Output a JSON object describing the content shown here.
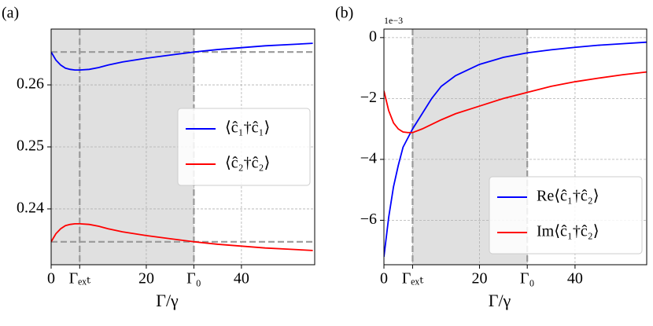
{
  "chart_data": [
    {
      "type": "line",
      "panel_label": "(a)",
      "xlabel": "Γ/γ",
      "x": [
        0,
        1,
        2,
        3,
        4,
        5,
        6,
        8,
        10,
        12,
        15,
        20,
        25,
        30,
        35,
        40,
        45,
        50,
        55
      ],
      "series": [
        {
          "name": "⟨ĉ₁†ĉ₁⟩",
          "color": "#0000ff",
          "values": [
            0.2653,
            0.264,
            0.2632,
            0.2627,
            0.2625,
            0.2624,
            0.2624,
            0.2625,
            0.2628,
            0.2632,
            0.2637,
            0.2643,
            0.2648,
            0.2653,
            0.2657,
            0.266,
            0.2663,
            0.2665,
            0.2667
          ]
        },
        {
          "name": "⟨ĉ₂†ĉ₂⟩",
          "color": "#ff0000",
          "values": [
            0.2347,
            0.236,
            0.2368,
            0.2373,
            0.2375,
            0.2376,
            0.2376,
            0.2375,
            0.2372,
            0.2368,
            0.2363,
            0.2357,
            0.2352,
            0.2347,
            0.2343,
            0.234,
            0.2337,
            0.2335,
            0.2333
          ]
        }
      ],
      "xlim": [
        0,
        55.4
      ],
      "ylim": [
        0.231,
        0.269
      ],
      "xticks": [
        0,
        {
          "value": 6,
          "label": "Γₑₓₜ"
        },
        20,
        {
          "value": 30,
          "label": "Γ₀"
        },
        40
      ],
      "yticks": [
        0.24,
        0.25,
        0.26
      ],
      "shade": [
        0,
        30
      ],
      "vlines": [
        6,
        30
      ],
      "hlines": [
        0.2653,
        0.2347
      ],
      "grid": true,
      "legend": "center right"
    },
    {
      "type": "line",
      "panel_label": "(b)",
      "xlabel": "Γ/γ",
      "offset_text": "1e−3",
      "x": [
        0,
        1,
        2,
        3,
        4,
        5,
        6,
        8,
        10,
        12,
        15,
        20,
        25,
        30,
        35,
        40,
        45,
        50,
        55
      ],
      "series": [
        {
          "name": "Re⟨ĉ₁†ĉ₂⟩",
          "color": "#0000ff",
          "values": [
            -7.2,
            -5.9,
            -4.9,
            -4.2,
            -3.6,
            -3.3,
            -3.0,
            -2.5,
            -2.0,
            -1.6,
            -1.25,
            -0.88,
            -0.65,
            -0.5,
            -0.4,
            -0.32,
            -0.25,
            -0.2,
            -0.15
          ]
        },
        {
          "name": "Im⟨ĉ₁†ĉ₂⟩",
          "color": "#ff0000",
          "values": [
            -1.75,
            -2.4,
            -2.8,
            -3.0,
            -3.1,
            -3.12,
            -3.12,
            -3.0,
            -2.85,
            -2.7,
            -2.5,
            -2.25,
            -2.0,
            -1.8,
            -1.6,
            -1.45,
            -1.33,
            -1.22,
            -1.13
          ]
        }
      ],
      "xlim": [
        0,
        55
      ],
      "ylim": [
        -7.46,
        0.28
      ],
      "xticks": [
        0,
        {
          "value": 6,
          "label": "Γₑₓₜ"
        },
        20,
        {
          "value": 30,
          "label": "Γ₀"
        },
        40
      ],
      "yticks": [
        {
          "value": -6,
          "label": "−6"
        },
        {
          "value": -4,
          "label": "−4"
        },
        {
          "value": -2,
          "label": "−2"
        },
        0
      ],
      "shade": [
        6,
        30
      ],
      "vlines": [
        6,
        30
      ],
      "grid": true,
      "legend": "lower right"
    }
  ]
}
